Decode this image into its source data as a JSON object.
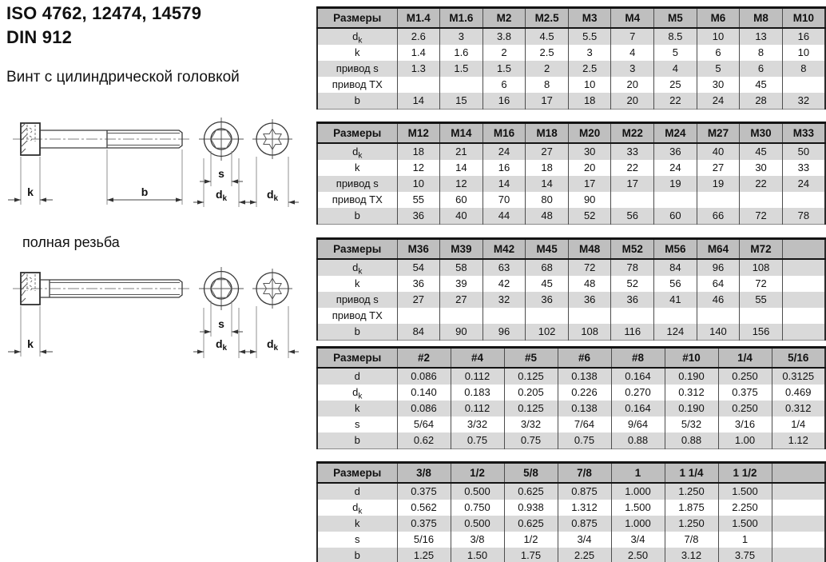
{
  "header": {
    "title_line1": "ISO 4762, 12474, 14579",
    "title_line2": "DIN 912",
    "subtitle": "Винт с цилиндрической головкой",
    "full_thread_label": "полная резьба"
  },
  "drawing": {
    "k": "k",
    "b": "b",
    "s": "s",
    "d": "d",
    "d_sub": "k"
  },
  "colors": {
    "table_header_bg": "#bfbfbf",
    "table_alt_row_bg": "#d9d9d9",
    "table_row_bg": "#ffffff",
    "table_border": "#141414",
    "page_bg": "#ffffff"
  },
  "labels": {
    "size_header": "Размеры"
  },
  "tables": [
    {
      "name": "dimension-table-metric-1",
      "columns": [
        "M1.4",
        "M1.6",
        "M2",
        "M2.5",
        "M3",
        "M4",
        "M5",
        "M6",
        "M8",
        "M10"
      ],
      "rows": [
        {
          "label": {
            "text": "d",
            "sub": "k"
          },
          "values": [
            "2.6",
            "3",
            "3.8",
            "4.5",
            "5.5",
            "7",
            "8.5",
            "10",
            "13",
            "16"
          ]
        },
        {
          "label": {
            "text": "k"
          },
          "values": [
            "1.4",
            "1.6",
            "2",
            "2.5",
            "3",
            "4",
            "5",
            "6",
            "8",
            "10"
          ]
        },
        {
          "label": {
            "text": "привод s"
          },
          "values": [
            "1.3",
            "1.5",
            "1.5",
            "2",
            "2.5",
            "3",
            "4",
            "5",
            "6",
            "8"
          ]
        },
        {
          "label": {
            "text": "привод TX"
          },
          "values": [
            "",
            "",
            "6",
            "8",
            "10",
            "20",
            "25",
            "30",
            "45",
            ""
          ]
        },
        {
          "label": {
            "text": "b"
          },
          "values": [
            "14",
            "15",
            "16",
            "17",
            "18",
            "20",
            "22",
            "24",
            "28",
            "32"
          ]
        }
      ]
    },
    {
      "name": "dimension-table-metric-2",
      "columns": [
        "M12",
        "M14",
        "M16",
        "M18",
        "M20",
        "M22",
        "M24",
        "M27",
        "M30",
        "M33"
      ],
      "rows": [
        {
          "label": {
            "text": "d",
            "sub": "k"
          },
          "values": [
            "18",
            "21",
            "24",
            "27",
            "30",
            "33",
            "36",
            "40",
            "45",
            "50"
          ]
        },
        {
          "label": {
            "text": "k"
          },
          "values": [
            "12",
            "14",
            "16",
            "18",
            "20",
            "22",
            "24",
            "27",
            "30",
            "33"
          ]
        },
        {
          "label": {
            "text": "привод s"
          },
          "values": [
            "10",
            "12",
            "14",
            "14",
            "17",
            "17",
            "19",
            "19",
            "22",
            "24"
          ]
        },
        {
          "label": {
            "text": "привод TX"
          },
          "values": [
            "55",
            "60",
            "70",
            "80",
            "90",
            "",
            "",
            "",
            "",
            ""
          ]
        },
        {
          "label": {
            "text": "b"
          },
          "values": [
            "36",
            "40",
            "44",
            "48",
            "52",
            "56",
            "60",
            "66",
            "72",
            "78"
          ]
        }
      ]
    },
    {
      "name": "dimension-table-metric-3",
      "columns": [
        "M36",
        "M39",
        "M42",
        "M45",
        "M48",
        "M52",
        "M56",
        "M64",
        "M72",
        ""
      ],
      "rows": [
        {
          "label": {
            "text": "d",
            "sub": "k"
          },
          "values": [
            "54",
            "58",
            "63",
            "68",
            "72",
            "78",
            "84",
            "96",
            "108",
            ""
          ]
        },
        {
          "label": {
            "text": "k"
          },
          "values": [
            "36",
            "39",
            "42",
            "45",
            "48",
            "52",
            "56",
            "64",
            "72",
            ""
          ]
        },
        {
          "label": {
            "text": "привод s"
          },
          "values": [
            "27",
            "27",
            "32",
            "36",
            "36",
            "36",
            "41",
            "46",
            "55",
            ""
          ]
        },
        {
          "label": {
            "text": "привод TX"
          },
          "values": [
            "",
            "",
            "",
            "",
            "",
            "",
            "",
            "",
            "",
            ""
          ]
        },
        {
          "label": {
            "text": "b"
          },
          "values": [
            "84",
            "90",
            "96",
            "102",
            "108",
            "116",
            "124",
            "140",
            "156",
            ""
          ]
        }
      ]
    },
    {
      "name": "dimension-table-imperial-1",
      "columns": [
        "#2",
        "#4",
        "#5",
        "#6",
        "#8",
        "#10",
        "1/4",
        "5/16"
      ],
      "rows": [
        {
          "label": {
            "text": "d"
          },
          "values": [
            "0.086",
            "0.112",
            "0.125",
            "0.138",
            "0.164",
            "0.190",
            "0.250",
            "0.3125"
          ]
        },
        {
          "label": {
            "text": "d",
            "sub": "k"
          },
          "values": [
            "0.140",
            "0.183",
            "0.205",
            "0.226",
            "0.270",
            "0.312",
            "0.375",
            "0.469"
          ]
        },
        {
          "label": {
            "text": "k"
          },
          "values": [
            "0.086",
            "0.112",
            "0.125",
            "0.138",
            "0.164",
            "0.190",
            "0.250",
            "0.312"
          ]
        },
        {
          "label": {
            "text": "s"
          },
          "values": [
            "5/64",
            "3/32",
            "3/32",
            "7/64",
            "9/64",
            "5/32",
            "3/16",
            "1/4"
          ]
        },
        {
          "label": {
            "text": "b"
          },
          "values": [
            "0.62",
            "0.75",
            "0.75",
            "0.75",
            "0.88",
            "0.88",
            "1.00",
            "1.12"
          ]
        }
      ]
    },
    {
      "name": "dimension-table-imperial-2",
      "columns": [
        "3/8",
        "1/2",
        "5/8",
        "7/8",
        "1",
        "1 1/4",
        "1 1/2",
        ""
      ],
      "rows": [
        {
          "label": {
            "text": "d"
          },
          "values": [
            "0.375",
            "0.500",
            "0.625",
            "0.875",
            "1.000",
            "1.250",
            "1.500",
            ""
          ]
        },
        {
          "label": {
            "text": "d",
            "sub": "k"
          },
          "values": [
            "0.562",
            "0.750",
            "0.938",
            "1.312",
            "1.500",
            "1.875",
            "2.250",
            ""
          ]
        },
        {
          "label": {
            "text": "k"
          },
          "values": [
            "0.375",
            "0.500",
            "0.625",
            "0.875",
            "1.000",
            "1.250",
            "1.500",
            ""
          ]
        },
        {
          "label": {
            "text": "s"
          },
          "values": [
            "5/16",
            "3/8",
            "1/2",
            "3/4",
            "3/4",
            "7/8",
            "1",
            ""
          ]
        },
        {
          "label": {
            "text": "b"
          },
          "values": [
            "1.25",
            "1.50",
            "1.75",
            "2.25",
            "2.50",
            "3.12",
            "3.75",
            ""
          ]
        }
      ]
    }
  ]
}
